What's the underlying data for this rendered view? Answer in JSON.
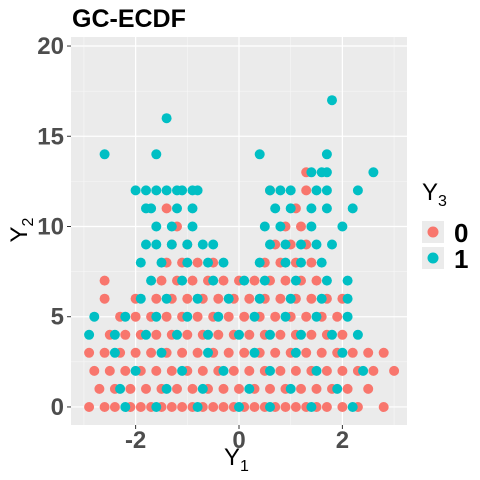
{
  "chart_data": {
    "type": "scatter",
    "title": "GC-ECDF",
    "xlabel": "Y",
    "xlabel_sub": "1",
    "ylabel": "Y",
    "ylabel_sub": "2",
    "xlim": [
      -3.25,
      3.25
    ],
    "ylim": [
      -1.0,
      20.5
    ],
    "x_ticks": [
      -2,
      0,
      2
    ],
    "x_tick_labels": [
      "-2",
      "0",
      "2"
    ],
    "y_ticks": [
      0,
      5,
      10,
      15,
      20
    ],
    "y_tick_labels": [
      "0",
      "5",
      "10",
      "15",
      "20"
    ],
    "grid": true,
    "legend_position": "right",
    "legend_title": "Y",
    "legend_title_sub": "3",
    "series": [
      {
        "name": "0",
        "color": "#F8766D",
        "points": [
          [
            -2.9,
            0
          ],
          [
            -2.6,
            0
          ],
          [
            -2.4,
            0
          ],
          [
            -2.1,
            0
          ],
          [
            -1.9,
            0
          ],
          [
            -1.7,
            0
          ],
          [
            -1.5,
            0
          ],
          [
            -1.3,
            0
          ],
          [
            -1.1,
            0
          ],
          [
            -0.9,
            0
          ],
          [
            -0.7,
            0
          ],
          [
            -0.5,
            0
          ],
          [
            -0.3,
            0
          ],
          [
            -0.1,
            0
          ],
          [
            0.1,
            0
          ],
          [
            0.3,
            0
          ],
          [
            0.5,
            0
          ],
          [
            0.7,
            0
          ],
          [
            0.9,
            0
          ],
          [
            1.1,
            0
          ],
          [
            1.3,
            0
          ],
          [
            1.5,
            0
          ],
          [
            1.7,
            0
          ],
          [
            2.0,
            0
          ],
          [
            2.3,
            0
          ],
          [
            2.8,
            0
          ],
          [
            -2.7,
            1
          ],
          [
            -2.4,
            1
          ],
          [
            -2.1,
            1
          ],
          [
            -1.8,
            1
          ],
          [
            -1.5,
            1
          ],
          [
            -1.2,
            1
          ],
          [
            -0.9,
            1
          ],
          [
            -0.6,
            1
          ],
          [
            -0.3,
            1
          ],
          [
            0.0,
            1
          ],
          [
            0.3,
            1
          ],
          [
            0.6,
            1
          ],
          [
            0.9,
            1
          ],
          [
            1.2,
            1
          ],
          [
            1.5,
            1
          ],
          [
            1.8,
            1
          ],
          [
            2.1,
            1
          ],
          [
            2.5,
            1
          ],
          [
            -2.8,
            2
          ],
          [
            -2.5,
            2
          ],
          [
            -2.2,
            2
          ],
          [
            -1.9,
            2
          ],
          [
            -1.6,
            2
          ],
          [
            -1.3,
            2
          ],
          [
            -1.0,
            2
          ],
          [
            -0.7,
            2
          ],
          [
            -0.4,
            2
          ],
          [
            -0.1,
            2
          ],
          [
            0.2,
            2
          ],
          [
            0.5,
            2
          ],
          [
            0.8,
            2
          ],
          [
            1.1,
            2
          ],
          [
            1.4,
            2
          ],
          [
            1.7,
            2
          ],
          [
            2.0,
            2
          ],
          [
            2.3,
            2
          ],
          [
            2.6,
            2
          ],
          [
            3.0,
            2
          ],
          [
            -2.9,
            3
          ],
          [
            -2.6,
            3
          ],
          [
            -2.3,
            3
          ],
          [
            -2.0,
            3
          ],
          [
            -1.7,
            3
          ],
          [
            -1.4,
            3
          ],
          [
            -1.1,
            3
          ],
          [
            -0.8,
            3
          ],
          [
            -0.5,
            3
          ],
          [
            -0.2,
            3
          ],
          [
            0.1,
            3
          ],
          [
            0.4,
            3
          ],
          [
            0.7,
            3
          ],
          [
            1.0,
            3
          ],
          [
            1.3,
            3
          ],
          [
            1.6,
            3
          ],
          [
            1.9,
            3
          ],
          [
            2.2,
            3
          ],
          [
            2.5,
            3
          ],
          [
            2.8,
            3
          ],
          [
            -2.5,
            4
          ],
          [
            -2.2,
            4
          ],
          [
            -1.9,
            4
          ],
          [
            -1.6,
            4
          ],
          [
            -1.3,
            4
          ],
          [
            -1.0,
            4
          ],
          [
            -0.7,
            4
          ],
          [
            -0.4,
            4
          ],
          [
            -0.1,
            4
          ],
          [
            0.2,
            4
          ],
          [
            0.5,
            4
          ],
          [
            0.8,
            4
          ],
          [
            1.1,
            4
          ],
          [
            1.4,
            4
          ],
          [
            1.7,
            4
          ],
          [
            2.0,
            4
          ],
          [
            -2.3,
            5
          ],
          [
            -2.0,
            5
          ],
          [
            -1.7,
            5
          ],
          [
            -1.4,
            5
          ],
          [
            -1.1,
            5
          ],
          [
            -0.8,
            5
          ],
          [
            -0.5,
            5
          ],
          [
            -0.2,
            5
          ],
          [
            0.1,
            5
          ],
          [
            0.4,
            5
          ],
          [
            0.7,
            5
          ],
          [
            1.0,
            5
          ],
          [
            1.3,
            5
          ],
          [
            1.6,
            5
          ],
          [
            1.9,
            5
          ],
          [
            -2.6,
            6
          ],
          [
            -2.0,
            6
          ],
          [
            -1.6,
            6
          ],
          [
            -1.3,
            6
          ],
          [
            -1.0,
            6
          ],
          [
            -0.7,
            6
          ],
          [
            -0.4,
            6
          ],
          [
            -0.1,
            6
          ],
          [
            0.2,
            6
          ],
          [
            0.5,
            6
          ],
          [
            0.8,
            6
          ],
          [
            1.1,
            6
          ],
          [
            1.4,
            6
          ],
          [
            1.7,
            6
          ],
          [
            2.0,
            6
          ],
          [
            -2.6,
            7
          ],
          [
            -1.5,
            7
          ],
          [
            -1.2,
            7
          ],
          [
            -0.9,
            7
          ],
          [
            -0.6,
            7
          ],
          [
            -0.3,
            7
          ],
          [
            0.0,
            7
          ],
          [
            0.3,
            7
          ],
          [
            0.6,
            7
          ],
          [
            0.9,
            7
          ],
          [
            1.2,
            7
          ],
          [
            1.5,
            7
          ],
          [
            -1.4,
            8
          ],
          [
            -1.1,
            8
          ],
          [
            -0.8,
            8
          ],
          [
            -0.5,
            8
          ],
          [
            0.5,
            8
          ],
          [
            0.8,
            8
          ],
          [
            1.1,
            8
          ],
          [
            1.4,
            8
          ],
          [
            -1.3,
            9
          ],
          [
            -1.0,
            9
          ],
          [
            0.7,
            9
          ],
          [
            1.0,
            9
          ],
          [
            1.3,
            9
          ],
          [
            -1.2,
            10
          ],
          [
            0.9,
            10
          ],
          [
            1.2,
            10
          ],
          [
            -1.4,
            11
          ],
          [
            1.1,
            11
          ],
          [
            0.6,
            12
          ],
          [
            1.3,
            12
          ],
          [
            1.3,
            13
          ]
        ]
      },
      {
        "name": "1",
        "color": "#00BFC4",
        "points": [
          [
            -2.2,
            0
          ],
          [
            -1.6,
            0
          ],
          [
            -0.8,
            0
          ],
          [
            0.0,
            0
          ],
          [
            0.6,
            0
          ],
          [
            1.4,
            0
          ],
          [
            2.2,
            0
          ],
          [
            -2.3,
            1
          ],
          [
            -1.4,
            1
          ],
          [
            -0.7,
            1
          ],
          [
            0.2,
            1
          ],
          [
            1.0,
            1
          ],
          [
            1.9,
            1
          ],
          [
            -2.0,
            2
          ],
          [
            -1.1,
            2
          ],
          [
            -0.3,
            2
          ],
          [
            0.6,
            2
          ],
          [
            1.5,
            2
          ],
          [
            2.4,
            2
          ],
          [
            -2.4,
            3
          ],
          [
            -1.5,
            3
          ],
          [
            -0.6,
            3
          ],
          [
            0.3,
            3
          ],
          [
            1.1,
            3
          ],
          [
            2.0,
            3
          ],
          [
            -2.9,
            4
          ],
          [
            -2.4,
            4
          ],
          [
            -1.8,
            4
          ],
          [
            -1.2,
            4
          ],
          [
            -0.6,
            4
          ],
          [
            0.0,
            4
          ],
          [
            0.6,
            4
          ],
          [
            1.2,
            4
          ],
          [
            1.8,
            4
          ],
          [
            2.3,
            4
          ],
          [
            -2.8,
            5
          ],
          [
            -2.2,
            5
          ],
          [
            -1.6,
            5
          ],
          [
            -1.0,
            5
          ],
          [
            -0.4,
            5
          ],
          [
            0.3,
            5
          ],
          [
            0.9,
            5
          ],
          [
            1.5,
            5
          ],
          [
            2.1,
            5
          ],
          [
            -1.9,
            6
          ],
          [
            -1.4,
            6
          ],
          [
            -0.8,
            6
          ],
          [
            -0.2,
            6
          ],
          [
            0.4,
            6
          ],
          [
            1.0,
            6
          ],
          [
            1.6,
            6
          ],
          [
            2.1,
            6
          ],
          [
            -1.7,
            7
          ],
          [
            -1.1,
            7
          ],
          [
            -0.5,
            7
          ],
          [
            0.1,
            7
          ],
          [
            0.5,
            7
          ],
          [
            1.1,
            7
          ],
          [
            1.7,
            7
          ],
          [
            2.1,
            7
          ],
          [
            -1.9,
            8
          ],
          [
            -1.5,
            8
          ],
          [
            -1.0,
            8
          ],
          [
            -0.6,
            8
          ],
          [
            -0.3,
            8
          ],
          [
            0.4,
            8
          ],
          [
            0.9,
            8
          ],
          [
            1.2,
            8
          ],
          [
            1.6,
            8
          ],
          [
            -1.8,
            9
          ],
          [
            -1.6,
            9
          ],
          [
            -1.3,
            9
          ],
          [
            -1.0,
            9
          ],
          [
            -0.7,
            9
          ],
          [
            -0.5,
            9
          ],
          [
            0.6,
            9
          ],
          [
            0.9,
            9
          ],
          [
            1.2,
            9
          ],
          [
            1.5,
            9
          ],
          [
            1.8,
            9
          ],
          [
            -1.6,
            10
          ],
          [
            -1.3,
            10
          ],
          [
            -0.9,
            10
          ],
          [
            0.5,
            10
          ],
          [
            0.8,
            10
          ],
          [
            1.4,
            10
          ],
          [
            2.0,
            10
          ],
          [
            -1.8,
            11
          ],
          [
            -1.7,
            11
          ],
          [
            -1.2,
            11
          ],
          [
            -0.9,
            11
          ],
          [
            0.7,
            11
          ],
          [
            1.0,
            11
          ],
          [
            1.4,
            11
          ],
          [
            1.7,
            11
          ],
          [
            2.2,
            11
          ],
          [
            -2.0,
            12
          ],
          [
            -1.8,
            12
          ],
          [
            -1.6,
            12
          ],
          [
            -1.4,
            12
          ],
          [
            -1.2,
            12
          ],
          [
            -1.1,
            12
          ],
          [
            -0.9,
            12
          ],
          [
            -0.8,
            12
          ],
          [
            0.6,
            12
          ],
          [
            0.8,
            12
          ],
          [
            1.0,
            12
          ],
          [
            1.5,
            12
          ],
          [
            1.7,
            12
          ],
          [
            2.3,
            12
          ],
          [
            1.4,
            13
          ],
          [
            1.6,
            13
          ],
          [
            1.7,
            13
          ],
          [
            2.6,
            13
          ],
          [
            -2.6,
            14
          ],
          [
            -1.6,
            14
          ],
          [
            0.4,
            14
          ],
          [
            1.7,
            14
          ],
          [
            -1.4,
            16
          ],
          [
            1.8,
            17
          ]
        ]
      }
    ]
  }
}
